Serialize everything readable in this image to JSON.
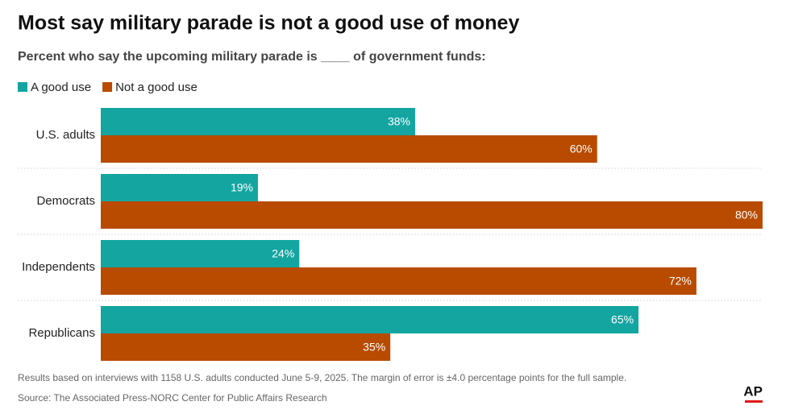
{
  "chart_data": {
    "type": "hbar",
    "title": "Most say military parade is not a good use of money",
    "subtitle": "Percent who say the upcoming military parade is ____ of government funds:",
    "categories": [
      "U.S. adults",
      "Democrats",
      "Independents",
      "Republicans"
    ],
    "series": [
      {
        "name": "A good use",
        "color": "#14a5a1",
        "values": [
          38,
          19,
          24,
          65
        ],
        "value_labels": [
          "38%",
          "19%",
          "24%",
          "65%"
        ]
      },
      {
        "name": "Not a good use",
        "color": "#b84b00",
        "values": [
          60,
          80,
          72,
          35
        ],
        "value_labels": [
          "60%",
          "80%",
          "72%",
          "35%"
        ]
      }
    ],
    "note": "Results based on interviews with 1158 U.S. adults conducted June 5-9, 2025. The margin of error is ±4.0 percentage points for the full sample.",
    "source": "Source: The Associated Press-NORC Center for Public Affairs Research",
    "logo": "AP"
  }
}
